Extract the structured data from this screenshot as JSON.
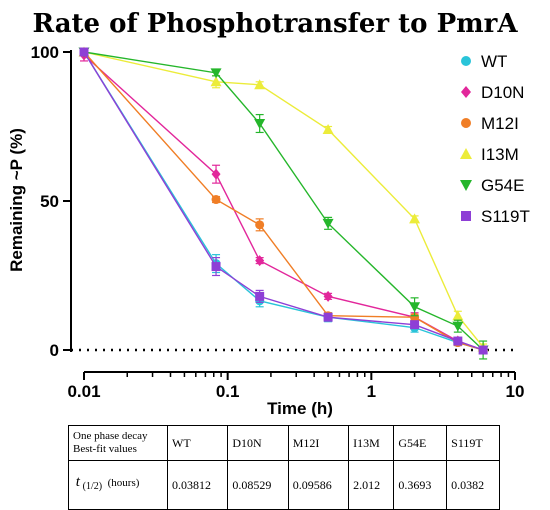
{
  "chart_data": {
    "type": "scatter",
    "title": "Rate of Phosphotransfer to PmrA",
    "xlabel": "Time (h)",
    "ylabel": "Remaining ~P (%)",
    "xscale": "log",
    "xlim": [
      0.01,
      10
    ],
    "ylim": [
      0,
      100
    ],
    "xticks": [
      0.01,
      0.1,
      1,
      10
    ],
    "xtick_labels": [
      "0.01",
      "0.1",
      "1",
      "10"
    ],
    "yticks": [
      0,
      50,
      100
    ],
    "ytick_labels": [
      "0",
      "50",
      "100"
    ],
    "zero_line": "dotted",
    "legend_position": "top-right",
    "series": [
      {
        "name": "WT",
        "color": "#29c4d9",
        "marker": "circle",
        "x": [
          0.01,
          0.083,
          0.167,
          0.5,
          2,
          4,
          6
        ],
        "y": [
          100,
          29,
          16.5,
          11,
          7.5,
          2.5,
          0
        ],
        "err": [
          0,
          3,
          2,
          1.5,
          1.5,
          1,
          0
        ]
      },
      {
        "name": "D10N",
        "color": "#e2279b",
        "marker": "diamond",
        "x": [
          0.01,
          0.083,
          0.167,
          0.5,
          2,
          4,
          6
        ],
        "y": [
          99,
          59,
          30,
          18,
          11,
          3,
          0
        ],
        "err": [
          2,
          3,
          1,
          1,
          1.5,
          1,
          0
        ]
      },
      {
        "name": "M12I",
        "color": "#f07e26",
        "marker": "circle",
        "x": [
          0.01,
          0.083,
          0.167,
          0.5,
          2,
          4,
          6
        ],
        "y": [
          100,
          50.5,
          42,
          11.5,
          11,
          2.5,
          0
        ],
        "err": [
          0,
          1,
          2,
          1,
          1,
          1,
          0
        ]
      },
      {
        "name": "I13M",
        "color": "#ecec3a",
        "marker": "triangle-up",
        "x": [
          0.01,
          0.083,
          0.167,
          0.5,
          2,
          4,
          6
        ],
        "y": [
          100,
          90,
          89,
          74,
          44,
          11.5,
          1
        ],
        "err": [
          0,
          2,
          1,
          1,
          1,
          1.5,
          1
        ]
      },
      {
        "name": "G54E",
        "color": "#25b62b",
        "marker": "triangle-down",
        "x": [
          0.01,
          0.083,
          0.167,
          0.5,
          2,
          4,
          6
        ],
        "y": [
          100,
          93,
          76,
          42.5,
          14.5,
          8,
          0
        ],
        "err": [
          0,
          1,
          3,
          2,
          3,
          2,
          3
        ]
      },
      {
        "name": "S119T",
        "color": "#8e3fd6",
        "marker": "square",
        "x": [
          0.01,
          0.083,
          0.167,
          0.5,
          2,
          4,
          6
        ],
        "y": [
          100,
          28,
          18,
          11,
          8.5,
          3,
          0
        ],
        "err": [
          0,
          3,
          2,
          1,
          1,
          1,
          0
        ]
      }
    ]
  },
  "table": {
    "header_label_line1": "One phase decay",
    "header_label_line2": "Best-fit values",
    "columns": [
      "WT",
      "D10N",
      "M12I",
      "I13M",
      "G54E",
      "S119T"
    ],
    "row_label_symbol": "t",
    "row_label_sub": "(1/2)",
    "row_label_unit": "(hours)",
    "values": [
      "0.03812",
      "0.08529",
      "0.09586",
      "2.012",
      "0.3693",
      "0.0382"
    ]
  }
}
